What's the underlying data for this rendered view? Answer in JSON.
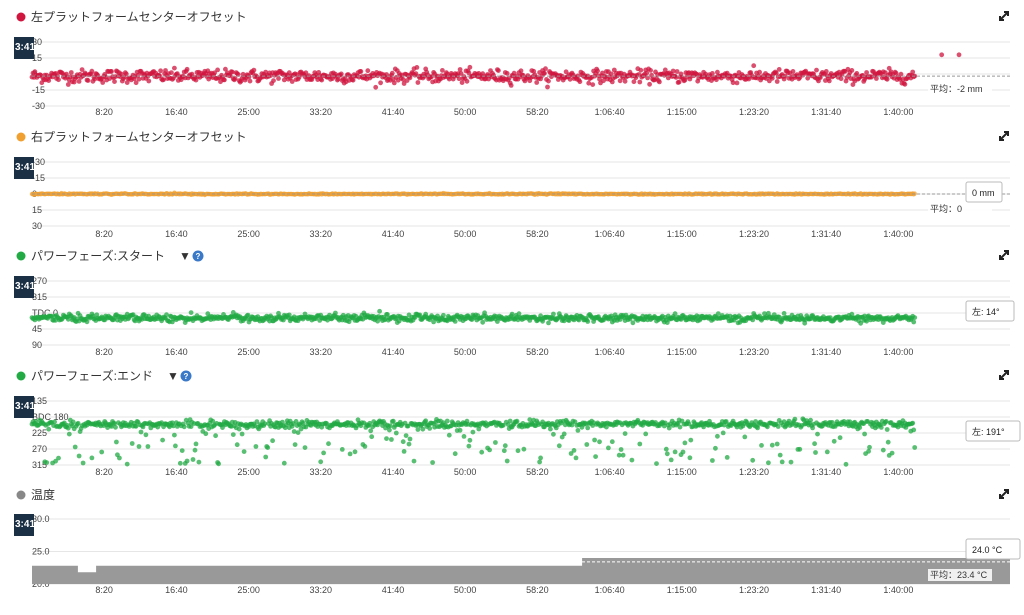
{
  "panels": [
    {
      "id": "left-offset",
      "title": "左プラットフォームセンターオフセット",
      "dot_color": "#d0163f",
      "has_dropdown": false,
      "has_help": false,
      "cursor_label": "3:41",
      "y_ticks": [
        "30",
        "15",
        "0",
        "-15",
        "-30"
      ],
      "tooltip": "",
      "avg_label": "平均：-2 mm"
    },
    {
      "id": "right-offset",
      "title": "右プラットフォームセンターオフセット",
      "dot_color": "#f0a030",
      "has_dropdown": false,
      "has_help": false,
      "cursor_label": "3:41",
      "y_ticks": [
        "-30",
        "-15",
        "0",
        "15",
        "30"
      ],
      "tooltip": "0 mm",
      "avg_label": "平均：0"
    },
    {
      "id": "power-phase-start",
      "title": "パワーフェーズ:スタート",
      "dot_color": "#22aa44",
      "has_dropdown": true,
      "has_help": true,
      "cursor_label": "3:41",
      "y_ticks": [
        "270",
        "315",
        "TDC 0",
        "45",
        "90"
      ],
      "tooltip": "左: 14°",
      "avg_label": ""
    },
    {
      "id": "power-phase-end",
      "title": "パワーフェーズ:エンド",
      "dot_color": "#22aa44",
      "has_dropdown": true,
      "has_help": true,
      "cursor_label": "3:41",
      "y_ticks": [
        "135",
        "BDC 180",
        "225",
        "270",
        "315"
      ],
      "tooltip": "左: 191°",
      "avg_label": ""
    },
    {
      "id": "temperature",
      "title": "温度",
      "dot_color": "#888888",
      "has_dropdown": false,
      "has_help": false,
      "cursor_label": "3:41",
      "y_ticks": [
        "30.0",
        "25.0",
        "20.0"
      ],
      "tooltip": "24.0 °C",
      "avg_label": "平均：23.4 °C"
    }
  ],
  "chart_data": [
    {
      "type": "scatter",
      "panel": "left-offset",
      "x_ticks": [
        "8:20",
        "16:40",
        "25:00",
        "33:20",
        "41:40",
        "50:00",
        "58:20",
        "1:06:40",
        "1:15:00",
        "1:23:20",
        "1:31:40",
        "1:40:00"
      ],
      "ylim": [
        -30,
        30
      ],
      "series": [
        {
          "color": "#d0163f",
          "mean": -2,
          "spread": 3,
          "outliers": [
            15,
            18,
            -12,
            8
          ]
        }
      ],
      "avg_line": -2,
      "tail_points": [
        {
          "x_min": 105,
          "y": 18
        },
        {
          "x_min": 107,
          "y": 18
        }
      ]
    },
    {
      "type": "scatter",
      "panel": "right-offset",
      "x_ticks": [
        "8:20",
        "16:40",
        "25:00",
        "33:20",
        "41:40",
        "50:00",
        "58:20",
        "1:06:40",
        "1:15:00",
        "1:23:20",
        "1:31:40",
        "1:40:00"
      ],
      "ylim": [
        -30,
        30
      ],
      "y_inverted": true,
      "series": [
        {
          "color": "#f0a030",
          "mean": 0,
          "spread": 0.3
        }
      ],
      "avg_line": 0
    },
    {
      "type": "scatter",
      "panel": "power-phase-start",
      "x_ticks": [
        "8:20",
        "16:40",
        "25:00",
        "33:20",
        "41:40",
        "50:00",
        "58:20",
        "1:06:40",
        "1:15:00",
        "1:23:20",
        "1:31:40",
        "1:40:00"
      ],
      "ylim": [
        270,
        90
      ],
      "series": [
        {
          "color": "#22aa44",
          "mean": 14,
          "spread": 5
        }
      ]
    },
    {
      "type": "scatter",
      "panel": "power-phase-end",
      "x_ticks": [
        "8:20",
        "16:40",
        "25:00",
        "33:20",
        "41:40",
        "50:00",
        "58:20",
        "1:06:40",
        "1:15:00",
        "1:23:20",
        "1:31:40",
        "1:40:00"
      ],
      "ylim": [
        135,
        315
      ],
      "series": [
        {
          "color": "#22aa44",
          "mean": 200,
          "spread": 5,
          "tail_to": 315
        }
      ]
    },
    {
      "type": "area",
      "panel": "temperature",
      "x_ticks": [
        "8:20",
        "16:40",
        "25:00",
        "33:20",
        "41:40",
        "50:00",
        "58:20",
        "1:06:40",
        "1:15:00",
        "1:23:20",
        "1:31:40",
        "1:40:00"
      ],
      "ylim": [
        20,
        30
      ],
      "steps": [
        {
          "x_min": 0,
          "y": 22.8
        },
        {
          "x_min": 5.3,
          "y": 21.8
        },
        {
          "x_min": 7.4,
          "y": 22.8
        },
        {
          "x_min": 63.5,
          "y": 24.0
        },
        {
          "x_min": 110,
          "y": 24.0
        }
      ],
      "avg_line": 23.4,
      "color": "#999999"
    }
  ]
}
